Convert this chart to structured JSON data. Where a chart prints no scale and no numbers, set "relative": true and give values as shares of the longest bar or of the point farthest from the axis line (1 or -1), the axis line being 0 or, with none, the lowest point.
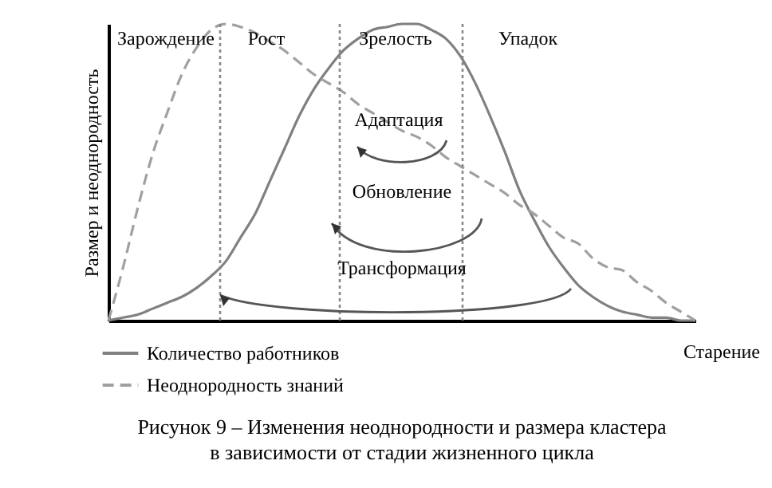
{
  "chart_data": {
    "type": "line",
    "title": "Рисунок 9 – Изменения неоднородности и размера кластера в зависимости от стадии жизненного цикла",
    "xlabel": "Старение",
    "ylabel": "Размер и неоднородность",
    "relative": true,
    "legend": "bottom left",
    "categories": [
      null,
      null,
      null,
      null,
      null,
      null,
      null,
      null,
      null,
      null,
      null,
      null,
      null,
      null,
      null,
      null,
      null,
      null,
      null,
      null,
      null,
      null,
      null,
      null,
      null,
      null,
      null,
      null,
      null,
      null,
      null,
      null,
      null,
      null,
      null,
      null,
      null,
      null,
      null,
      null,
      null
    ],
    "series": [
      {
        "name": "Количество работников",
        "color": "#808080",
        "line_style": "solid",
        "values": [
          0,
          0.01,
          0.02,
          0.04,
          0.06,
          0.08,
          0.11,
          0.15,
          0.2,
          0.28,
          0.36,
          0.47,
          0.58,
          0.69,
          0.78,
          0.85,
          0.91,
          0.95,
          0.98,
          0.99,
          1,
          1,
          0.98,
          0.95,
          0.89,
          0.8,
          0.69,
          0.57,
          0.44,
          0.34,
          0.25,
          0.18,
          0.12,
          0.08,
          0.05,
          0.03,
          0.02,
          0.01,
          0.01,
          0,
          0
        ]
      },
      {
        "name": "Неоднородность знаний",
        "color": "#a0a0a0",
        "line_style": "dashed",
        "values": [
          0,
          0.18,
          0.38,
          0.56,
          0.7,
          0.83,
          0.92,
          0.98,
          1,
          0.99,
          0.97,
          0.94,
          0.91,
          0.87,
          0.83,
          0.8,
          0.77,
          0.73,
          0.7,
          0.67,
          0.64,
          0.62,
          0.59,
          0.55,
          0.52,
          0.49,
          0.46,
          0.43,
          0.39,
          0.36,
          0.32,
          0.28,
          0.26,
          0.21,
          0.18,
          0.17,
          0.13,
          0.1,
          0.06,
          0.03,
          0
        ]
      }
    ],
    "annotations": [
      "Зарождение",
      "Рост",
      "Зрелость",
      "Упадок",
      "Адаптация",
      "Обновление",
      "Трансформация"
    ]
  }
}
